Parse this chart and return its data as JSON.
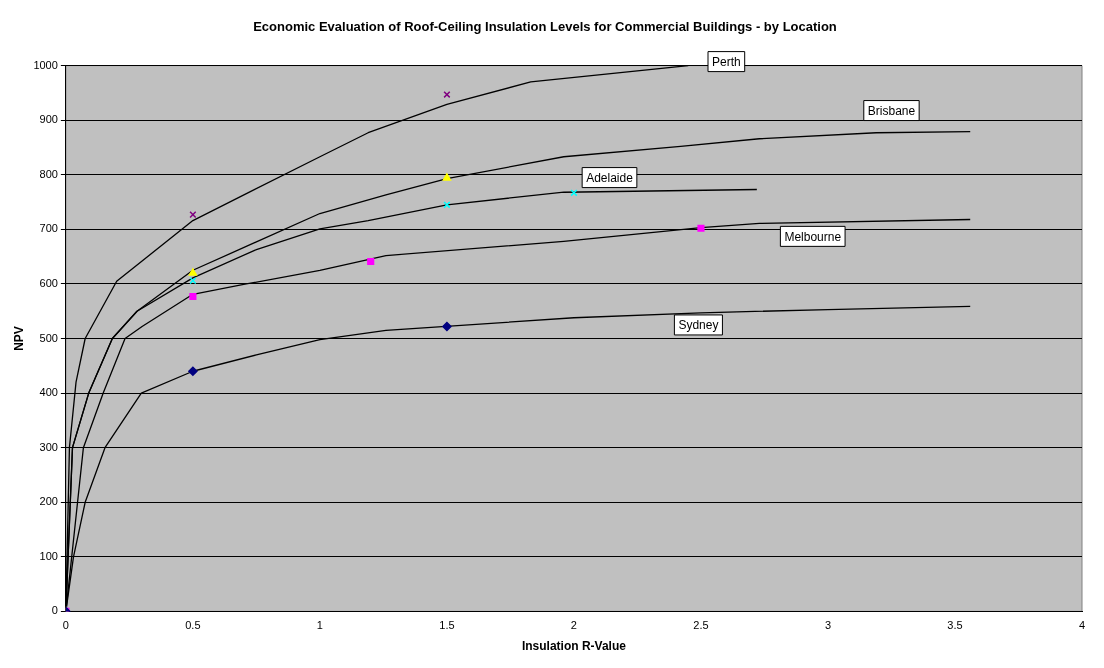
{
  "chart_data": {
    "type": "scatter",
    "title": "Economic Evaluation of Roof-Ceiling Insulation Levels for Commercial Buildings - by Location",
    "xlabel": "Insulation R-Value",
    "ylabel": "NPV",
    "xlim": [
      0,
      4
    ],
    "xticks": [
      0,
      0.5,
      1,
      1.5,
      2,
      2.5,
      3,
      3.5,
      4
    ],
    "ylim": [
      0,
      1000
    ],
    "yticks": [
      0,
      100,
      200,
      300,
      400,
      500,
      600,
      700,
      800,
      900,
      1000
    ],
    "grid": "y",
    "legend": false,
    "series": [
      {
        "color": "#000080",
        "marker": "diamond",
        "x": [
          0,
          0.5,
          1.5
        ],
        "values": [
          0,
          440,
          522
        ]
      },
      {
        "color": "#ff00ff",
        "marker": "square",
        "x": [
          0,
          0.5,
          1.2,
          2.5
        ],
        "values": [
          0,
          577,
          641,
          702
        ]
      },
      {
        "color": "#00ffff",
        "marker": "cross",
        "x": [
          0,
          0.5,
          1.5,
          2
        ],
        "values": [
          0,
          606,
          745,
          767
        ]
      },
      {
        "color": "#ffff00",
        "marker": "triangle",
        "x": [
          0,
          0.5,
          1.5
        ],
        "values": [
          0,
          620,
          794
        ]
      },
      {
        "color": "#800080",
        "marker": "cross",
        "x": [
          0,
          0.5,
          1.5
        ],
        "values": [
          0,
          727,
          947
        ]
      },
      {
        "type": "line",
        "name": "Sydney",
        "color": "#000000",
        "marker": "none",
        "x": [
          0,
          0.03,
          0.076,
          0.154,
          0.297,
          0.5,
          0.75,
          1,
          1.26,
          2,
          2.5,
          3,
          3.56
        ],
        "values": [
          0,
          100,
          200,
          300,
          400,
          440,
          470,
          498,
          515,
          538,
          547,
          553,
          559
        ]
      },
      {
        "type": "line",
        "name": "Melbourne",
        "color": "#000000",
        "marker": "none",
        "x": [
          0,
          0.069,
          0.147,
          0.233,
          0.3,
          0.5,
          0.7,
          1,
          1.26,
          1.96,
          2.5,
          2.73,
          3.56
        ],
        "values": [
          0,
          300,
          400,
          500,
          522,
          581,
          599,
          625,
          652,
          678,
          703,
          711,
          718
        ]
      },
      {
        "type": "line",
        "name": "Adelaide",
        "color": "#000000",
        "marker": "none",
        "x": [
          0,
          0.026,
          0.09,
          0.183,
          0.28,
          0.5,
          0.75,
          1,
          1.19,
          1.5,
          1.96,
          2.72
        ],
        "values": [
          0,
          300,
          400,
          500,
          550,
          611,
          663,
          701,
          716,
          745,
          768,
          773
        ]
      },
      {
        "type": "line",
        "name": "Brisbane",
        "color": "#000000",
        "marker": "none",
        "x": [
          0,
          0.026,
          0.09,
          0.183,
          0.28,
          0.5,
          0.75,
          1,
          1.26,
          1.5,
          1.96,
          2.42,
          2.73,
          3.19,
          3.56
        ],
        "values": [
          0,
          300,
          400,
          500,
          550,
          625,
          677,
          729,
          763,
          793,
          833,
          852,
          866,
          877,
          879
        ]
      },
      {
        "type": "line",
        "name": "Perth",
        "color": "#000000",
        "marker": "none",
        "x": [
          0,
          0.014,
          0.04,
          0.076,
          0.2,
          0.5,
          0.73,
          1,
          1.19,
          1.5,
          1.83,
          2.45
        ],
        "values": [
          0,
          300,
          420,
          500,
          605,
          716,
          770,
          833,
          877,
          929,
          970,
          1000
        ]
      }
    ]
  }
}
